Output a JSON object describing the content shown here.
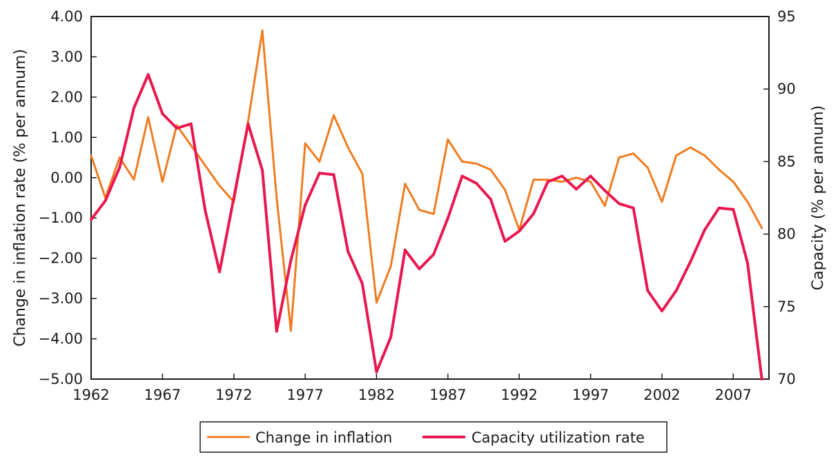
{
  "chart_data": {
    "type": "line",
    "title": "",
    "xlabel": "",
    "ylabel_left": "Change in inflation rate (% per annum)",
    "ylabel_right": "Capacity (% per annum)",
    "x_ticks": [
      "1962",
      "1967",
      "1972",
      "1977",
      "1982",
      "1987",
      "1992",
      "1997",
      "2002",
      "2007"
    ],
    "xlim": [
      1962,
      2009.5
    ],
    "ylim_left": [
      -5,
      4
    ],
    "y_ticks_left": [
      "4.00",
      "3.00",
      "2.00",
      "1.00",
      "0.00",
      "−1.00",
      "−2.00",
      "−3.00",
      "−4.00",
      "−5.00"
    ],
    "ylim_right": [
      70,
      95
    ],
    "y_ticks_right": [
      "95",
      "90",
      "85",
      "80",
      "75",
      "70"
    ],
    "grid": false,
    "legend_position": "bottom",
    "series": [
      {
        "name": "Change in inflation",
        "axis": "left",
        "color": "#f07b1f",
        "x": [
          1962,
          1963,
          1964,
          1965,
          1966,
          1967,
          1968,
          1969,
          1970,
          1971,
          1972,
          1973,
          1974,
          1975,
          1976,
          1977,
          1978,
          1979,
          1980,
          1981,
          1982,
          1983,
          1984,
          1985,
          1986,
          1987,
          1988,
          1989,
          1990,
          1991,
          1992,
          1993,
          1994,
          1995,
          1996,
          1997,
          1998,
          1999,
          2000,
          2001,
          2002,
          2003,
          2004,
          2005,
          2006,
          2007,
          2008,
          2009
        ],
        "values": [
          0.55,
          -0.5,
          0.5,
          -0.05,
          1.5,
          -0.1,
          1.3,
          0.8,
          0.3,
          -0.2,
          -0.6,
          1.4,
          3.65,
          -0.5,
          -3.8,
          0.85,
          0.4,
          1.55,
          0.75,
          0.1,
          -3.1,
          -2.2,
          -0.15,
          -0.8,
          -0.9,
          0.95,
          0.4,
          0.35,
          0.2,
          -0.3,
          -1.3,
          -0.05,
          -0.05,
          -0.1,
          0.0,
          -0.1,
          -0.7,
          0.5,
          0.6,
          0.25,
          -0.6,
          0.55,
          0.75,
          0.55,
          0.2,
          -0.1,
          -0.6,
          -1.25
        ]
      },
      {
        "name": "Capacity utilization rate",
        "axis": "right",
        "color": "#e8184f",
        "x": [
          1962,
          1963,
          1964,
          1965,
          1966,
          1967,
          1968,
          1969,
          1970,
          1971,
          1972,
          1973,
          1974,
          1975,
          1976,
          1977,
          1978,
          1979,
          1980,
          1981,
          1982,
          1983,
          1984,
          1985,
          1986,
          1987,
          1988,
          1989,
          1990,
          1991,
          1992,
          1993,
          1994,
          1995,
          1996,
          1997,
          1998,
          1999,
          2000,
          2001,
          2002,
          2003,
          2004,
          2005,
          2006,
          2007,
          2008,
          2009
        ],
        "values": [
          81.0,
          82.3,
          84.6,
          88.7,
          91.0,
          88.3,
          87.3,
          87.6,
          81.6,
          77.4,
          82.5,
          87.6,
          84.4,
          73.3,
          78.2,
          82.0,
          84.2,
          84.1,
          78.8,
          76.6,
          70.5,
          72.9,
          78.9,
          77.6,
          78.6,
          81.1,
          84.0,
          83.5,
          82.4,
          79.5,
          80.2,
          81.4,
          83.6,
          84.0,
          83.1,
          84.0,
          83.0,
          82.1,
          81.8,
          76.1,
          74.7,
          76.1,
          78.1,
          80.3,
          81.8,
          81.7,
          78.0,
          70.0
        ]
      }
    ]
  }
}
